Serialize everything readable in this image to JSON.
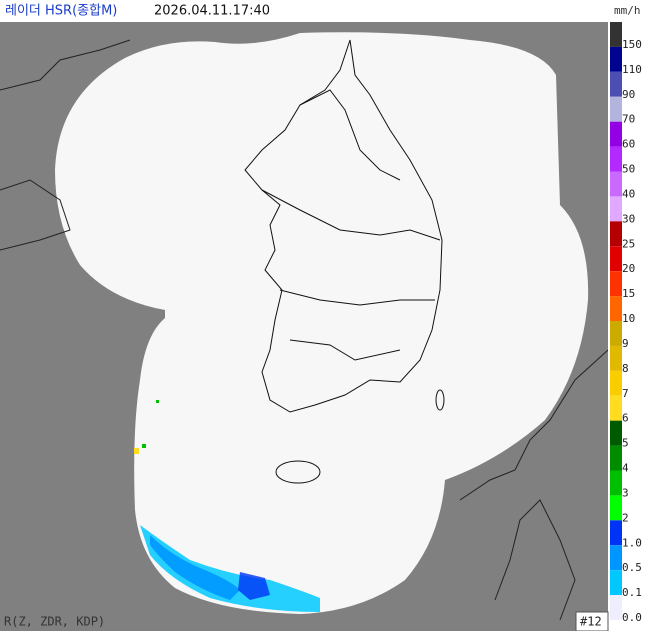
{
  "header": {
    "title": "레이더 HSR(종합M)",
    "time": "2026.04.11.17:40",
    "unit": "mm/h"
  },
  "legend": [
    {
      "label": "150",
      "color": "#333333"
    },
    {
      "label": "110",
      "color": "#000390"
    },
    {
      "label": "90",
      "color": "#4c4eb1"
    },
    {
      "label": "70",
      "color": "#b3b4de"
    },
    {
      "label": "60",
      "color": "#9300e4"
    },
    {
      "label": "50",
      "color": "#b329ff"
    },
    {
      "label": "40",
      "color": "#c969ff"
    },
    {
      "label": "30",
      "color": "#e0a9ff"
    },
    {
      "label": "25",
      "color": "#b40000"
    },
    {
      "label": "20",
      "color": "#e00000"
    },
    {
      "label": "15",
      "color": "#ff3300"
    },
    {
      "label": "10",
      "color": "#ff6600"
    },
    {
      "label": "9",
      "color": "#ccaa00"
    },
    {
      "label": "8",
      "color": "#e0b900"
    },
    {
      "label": "7",
      "color": "#f9cd00"
    },
    {
      "label": "6",
      "color": "#ffdc1f"
    },
    {
      "label": "5",
      "color": "#005a00"
    },
    {
      "label": "4",
      "color": "#008c00"
    },
    {
      "label": "3",
      "color": "#00be00"
    },
    {
      "label": "2",
      "color": "#00ff00"
    },
    {
      "label": "1.0",
      "color": "#0033f5"
    },
    {
      "label": "0.5",
      "color": "#0096ff"
    },
    {
      "label": "0.1",
      "color": "#00c8ff"
    },
    {
      "label": "0.0",
      "color": "#eeeeff"
    }
  ],
  "footer": {
    "method": "R(Z, ZDR, KDP)",
    "site_count": "#12"
  }
}
